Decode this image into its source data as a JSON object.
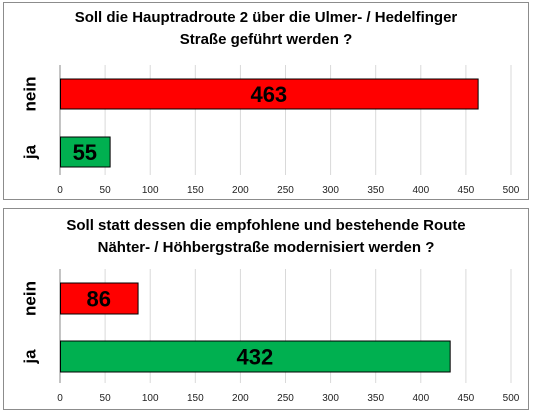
{
  "colors": {
    "nein": "#ff0000",
    "ja": "#00b050",
    "grid": "#d9d9d9",
    "axis": "#888888",
    "border": "#8c8c8c"
  },
  "chart_data": [
    {
      "type": "bar",
      "orientation": "horizontal",
      "title_lines": [
        "Soll die Hauptradroute 2 über die Ulmer- / Hedelfinger",
        "Straße geführt werden ?"
      ],
      "categories": [
        "nein",
        "ja"
      ],
      "values": [
        463,
        55
      ],
      "xlim": [
        0,
        500
      ],
      "xticks": [
        0,
        50,
        100,
        150,
        200,
        250,
        300,
        350,
        400,
        450,
        500
      ],
      "grid": true
    },
    {
      "type": "bar",
      "orientation": "horizontal",
      "title_lines": [
        "Soll statt dessen die empfohlene und bestehende Route",
        "Nähter- / Höhbergstraße modernisiert werden ?"
      ],
      "categories": [
        "nein",
        "ja"
      ],
      "values": [
        86,
        432
      ],
      "xlim": [
        0,
        500
      ],
      "xticks": [
        0,
        50,
        100,
        150,
        200,
        250,
        300,
        350,
        400,
        450,
        500
      ],
      "grid": true
    }
  ]
}
